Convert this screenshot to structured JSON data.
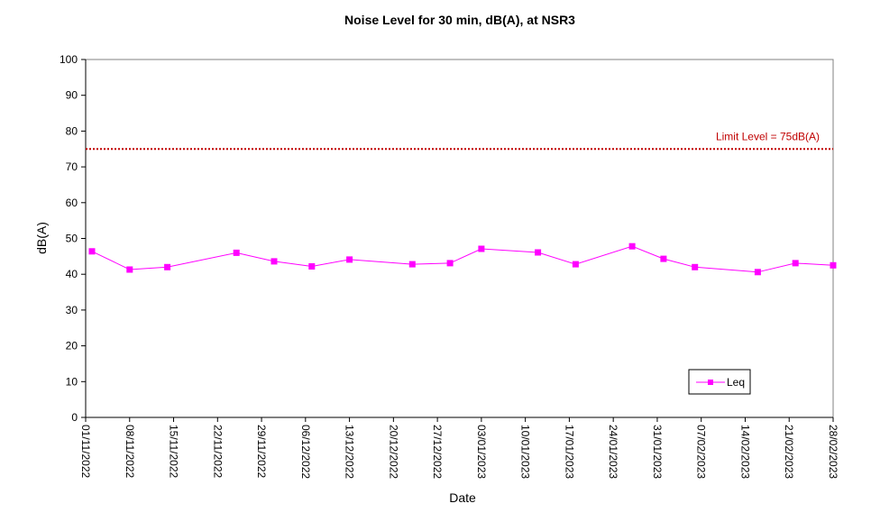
{
  "chart_data": {
    "type": "line",
    "title": "Noise Level for 30 min, dB(A), at NSR3",
    "xlabel": "Date",
    "ylabel": "dB(A)",
    "ylim": [
      0,
      100
    ],
    "yticks": [
      0,
      10,
      20,
      30,
      40,
      50,
      60,
      70,
      80,
      90,
      100
    ],
    "xlim": [
      "01/11/2022",
      "28/02/2023"
    ],
    "xticks": [
      "01/11/2022",
      "08/11/2022",
      "15/11/2022",
      "22/11/2022",
      "29/11/2022",
      "06/12/2022",
      "13/12/2022",
      "20/12/2022",
      "27/12/2022",
      "03/01/2023",
      "10/01/2023",
      "17/01/2023",
      "24/01/2023",
      "31/01/2023",
      "07/02/2023",
      "14/02/2023",
      "21/02/2023",
      "28/02/2023"
    ],
    "grid": false,
    "legend_position": "bottom-right",
    "limit_line": {
      "value": 75,
      "label": "Limit Level  = 75dB(A)",
      "color": "#c00000"
    },
    "series": [
      {
        "name": "Leq",
        "color": "#ff00ff",
        "x": [
          "02/11/2022",
          "08/11/2022",
          "14/11/2022",
          "25/11/2022",
          "01/12/2022",
          "07/12/2022",
          "13/12/2022",
          "23/12/2022",
          "29/12/2022",
          "03/01/2023",
          "12/01/2023",
          "18/01/2023",
          "27/01/2023",
          "01/02/2023",
          "06/02/2023",
          "16/02/2023",
          "22/02/2023",
          "28/02/2023"
        ],
        "y": [
          46.4,
          41.3,
          42.0,
          46.0,
          43.6,
          42.2,
          44.1,
          42.8,
          43.1,
          47.1,
          46.1,
          42.8,
          47.8,
          44.3,
          42.0,
          40.6,
          43.1,
          42.5
        ]
      }
    ]
  }
}
